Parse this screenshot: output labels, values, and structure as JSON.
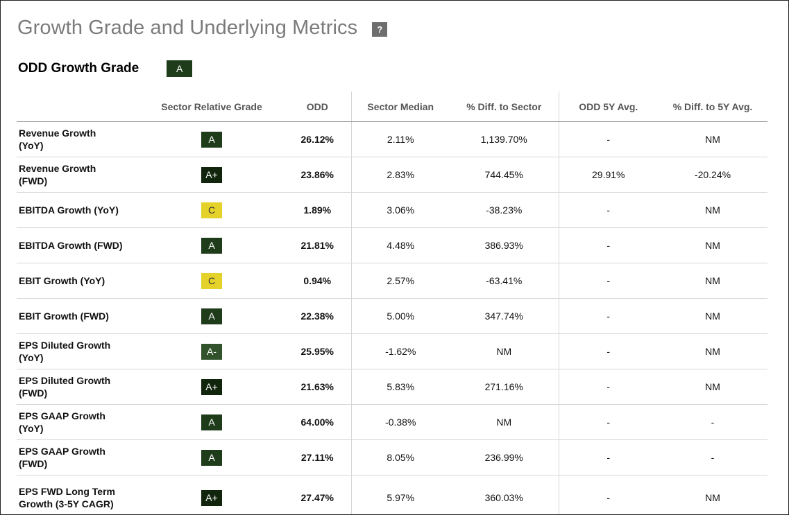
{
  "title": "Growth Grade and Underlying Metrics",
  "help_label": "?",
  "grade_label": "ODD Growth Grade",
  "overall_grade": {
    "text": "A",
    "color": "#1e3c1a"
  },
  "grade_colors": {
    "A+": "#11250d",
    "A": "#1e3c1a",
    "A-": "#32522c",
    "C": "#e4d22a"
  },
  "columns": [
    "",
    "Sector Relative Grade",
    "ODD",
    "Sector Median",
    "% Diff. to Sector",
    "ODD 5Y Avg.",
    "% Diff. to 5Y Avg."
  ],
  "rows": [
    {
      "metric": "Revenue Growth (YoY)",
      "grade": "A",
      "grade_color": "#1e3c1a",
      "grade_text_color": "#ffffff",
      "odd": "26.12%",
      "sector_median": "2.11%",
      "diff_sector": "1,139.70%",
      "avg_5y": "-",
      "diff_5y": "NM"
    },
    {
      "metric": "Revenue Growth (FWD)",
      "grade": "A+",
      "grade_color": "#11250d",
      "grade_text_color": "#ffffff",
      "odd": "23.86%",
      "sector_median": "2.83%",
      "diff_sector": "744.45%",
      "avg_5y": "29.91%",
      "diff_5y": "-20.24%"
    },
    {
      "metric": "EBITDA Growth (YoY)",
      "grade": "C",
      "grade_color": "#e4d22a",
      "grade_text_color": "#333333",
      "odd": "1.89%",
      "sector_median": "3.06%",
      "diff_sector": "-38.23%",
      "avg_5y": "-",
      "diff_5y": "NM"
    },
    {
      "metric": "EBITDA Growth (FWD)",
      "grade": "A",
      "grade_color": "#1e3c1a",
      "grade_text_color": "#ffffff",
      "odd": "21.81%",
      "sector_median": "4.48%",
      "diff_sector": "386.93%",
      "avg_5y": "-",
      "diff_5y": "NM"
    },
    {
      "metric": "EBIT Growth (YoY)",
      "grade": "C",
      "grade_color": "#e4d22a",
      "grade_text_color": "#333333",
      "odd": "0.94%",
      "sector_median": "2.57%",
      "diff_sector": "-63.41%",
      "avg_5y": "-",
      "diff_5y": "NM",
      "short": true
    },
    {
      "metric": "EBIT Growth (FWD)",
      "grade": "A",
      "grade_color": "#1e3c1a",
      "grade_text_color": "#ffffff",
      "odd": "22.38%",
      "sector_median": "5.00%",
      "diff_sector": "347.74%",
      "avg_5y": "-",
      "diff_5y": "NM"
    },
    {
      "metric": "EPS Diluted Growth (YoY)",
      "grade": "A-",
      "grade_color": "#32522c",
      "grade_text_color": "#ffffff",
      "odd": "25.95%",
      "sector_median": "-1.62%",
      "diff_sector": "NM",
      "avg_5y": "-",
      "diff_5y": "NM"
    },
    {
      "metric": "EPS Diluted Growth (FWD)",
      "grade": "A+",
      "grade_color": "#11250d",
      "grade_text_color": "#ffffff",
      "odd": "21.63%",
      "sector_median": "5.83%",
      "diff_sector": "271.16%",
      "avg_5y": "-",
      "diff_5y": "NM"
    },
    {
      "metric": "EPS GAAP Growth (YoY)",
      "grade": "A",
      "grade_color": "#1e3c1a",
      "grade_text_color": "#ffffff",
      "odd": "64.00%",
      "sector_median": "-0.38%",
      "diff_sector": "NM",
      "avg_5y": "-",
      "diff_5y": "-"
    },
    {
      "metric": "EPS GAAP Growth (FWD)",
      "grade": "A",
      "grade_color": "#1e3c1a",
      "grade_text_color": "#ffffff",
      "odd": "27.11%",
      "sector_median": "8.05%",
      "diff_sector": "236.99%",
      "avg_5y": "-",
      "diff_5y": "-"
    },
    {
      "metric": "EPS FWD Long Term Growth (3-5Y CAGR)",
      "grade": "A+",
      "grade_color": "#11250d",
      "grade_text_color": "#ffffff",
      "odd": "27.47%",
      "sector_median": "5.97%",
      "diff_sector": "360.03%",
      "avg_5y": "-",
      "diff_5y": "NM",
      "tall": true
    }
  ]
}
